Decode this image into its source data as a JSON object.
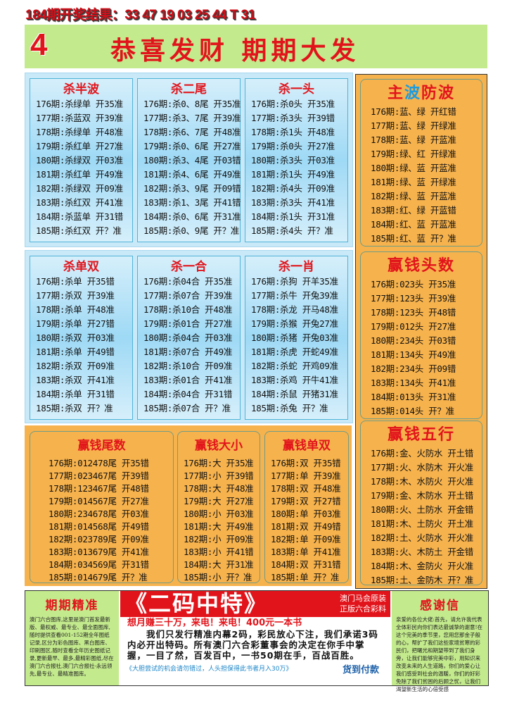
{
  "headline": "184期开奖结果：33 47 19 03 25 44 T 31",
  "banner": {
    "number": "4",
    "slogan": "恭喜发财  期期大发"
  },
  "blue_panels": [
    {
      "title": "杀半波",
      "rows": [
        "176期:杀绿单 开35准",
        "177期:杀蓝双 开39准",
        "178期:杀绿单 开48准",
        "179期:杀红单 开27准",
        "180期:杀绿双 开03准",
        "181期:杀红单 开49准",
        "182期:杀绿双 开09准",
        "183期:杀红双 开41准",
        "184期:杀蓝单 开31错",
        "185期:杀红双 开？准"
      ]
    },
    {
      "title": "杀二尾",
      "rows": [
        "176期:杀0、8尾 开35准",
        "177期:杀3、7尾 开39准",
        "178期:杀6、7尾 开48准",
        "179期:杀0、6尾 开27准",
        "180期:杀3、4尾 开03错",
        "181期:杀4、6尾 开49准",
        "182期:杀3、9尾 开09错",
        "183期:杀1、3尾 开41错",
        "184期:杀0、6尾 开31准",
        "185期:杀0、9尾 开？准"
      ]
    },
    {
      "title": "杀一头",
      "rows": [
        "176期:杀0头 开35准",
        "177期:杀3头 开39错",
        "178期:杀1头 开48准",
        "179期:杀0头 开27准",
        "180期:杀3头 开03准",
        "181期:杀1头 开49准",
        "182期:杀4头 开09准",
        "183期:杀3头 开41准",
        "184期:杀1头 开31准",
        "185期:杀4头 开？准"
      ]
    },
    {
      "title": "杀单双",
      "rows": [
        "176期:杀单 开35错",
        "177期:杀双 开39准",
        "178期:杀单 开48准",
        "179期:杀单 开27错",
        "180期:杀双 开03准",
        "181期:杀单 开49错",
        "182期:杀双 开09准",
        "183期:杀双 开41准",
        "184期:杀单 开31错",
        "185期:杀双 开？准"
      ]
    },
    {
      "title": "杀一合",
      "rows": [
        "176期:杀04合 开35准",
        "177期:杀07合 开39准",
        "178期:杀10合 开48准",
        "179期:杀01合 开27准",
        "180期:杀04合 开03准",
        "181期:杀07合 开49准",
        "182期:杀10合 开09准",
        "183期:杀01合 开41准",
        "184期:杀04合 开31错",
        "185期:杀07合 开？准"
      ]
    },
    {
      "title": "杀一肖",
      "rows": [
        "176期:杀狗 开羊35准",
        "177期:杀牛 开兔39准",
        "178期:杀龙 开马48准",
        "179期:杀猴 开兔27准",
        "180期:杀猪 开兔03准",
        "181期:杀虎 开蛇49准",
        "182期:杀蛇 开鸡09准",
        "183期:杀鸡 开牛41准",
        "184期:杀鼠 开猪31准",
        "185期:杀兔 开？准"
      ]
    }
  ],
  "orange_panels": [
    {
      "title": "赢钱尾数",
      "rows": [
        "176期:012478尾 开35错",
        "177期:023467尾 开39错",
        "178期:123467尾 开48错",
        "179期:014567尾 开27准",
        "180期:234678尾 开03准",
        "181期:014568尾 开49错",
        "182期:023789尾 开09准",
        "183期:013679尾 开41准",
        "184期:034569尾 开31错",
        "185期:014679尾 开？准"
      ]
    },
    {
      "title": "赢钱大小",
      "rows": [
        "176期:大 开35准",
        "177期:小 开39错",
        "178期:大 开48准",
        "179期:大 开27准",
        "180期:小 开03准",
        "181期:大 开49准",
        "182期:小 开09准",
        "183期:小 开41错",
        "184期:大 开31准",
        "185期:小 开？准"
      ]
    },
    {
      "title": "赢钱单双",
      "rows": [
        "176期:双 开35错",
        "177期:单 开39准",
        "178期:双 开48准",
        "179期:双 开27错",
        "180期:单 开03准",
        "181期:双 开49错",
        "182期:单 开09准",
        "183期:单 开41准",
        "184期:双 开31错",
        "185期:单 开？准"
      ]
    }
  ],
  "right_panels": [
    {
      "title_parts": [
        "主",
        "波",
        "防波"
      ],
      "rows": [
        "176期:蓝、绿 开红错",
        "177期:蓝、绿 开绿准",
        "178期:蓝、绿 开蓝准",
        "179期:绿、红 开绿准",
        "180期:绿、蓝 开蓝准",
        "181期:绿、蓝 开绿准",
        "182期:绿、蓝 开蓝准",
        "183期:红、绿 开蓝错",
        "184期:红、蓝 开蓝准",
        "185期:红、蓝 开？准"
      ]
    },
    {
      "title": "赢钱头数",
      "rows": [
        "176期:023头 开35准",
        "177期:123头 开39准",
        "178期:123头 开48错",
        "179期:012头 开27准",
        "180期:234头 开03错",
        "181期:134头 开49准",
        "182期:234头 开09错",
        "183期:134头 开41准",
        "184期:013头 开31准",
        "185期:014头 开？准"
      ]
    },
    {
      "title": "赢钱五行",
      "rows": [
        "176期:金、火防水 开土错",
        "177期:火、水防木 开火准",
        "178期:木、水防火 开火准",
        "179期:金、木防水 开土错",
        "180期:火、土防水 开金错",
        "181期:木、土防火 开土准",
        "182期:土、火防水 开火准",
        "183期:火、木防土 开金错",
        "184期:木、金防火 开火准",
        "185期:土、金防木 开？准"
      ]
    }
  ],
  "bottom": {
    "left": {
      "title": "期期精准",
      "text": "澳门六合图库,这里是澳门首发最新版、最权威、最专业、最全面图库,随时提供查看001-152期全年图纸记录,区分为彩色图库、黑白图库、印刷图区,随时查看全年历史图纸记录,更新最早、最多,最精彩图纸,尽在澳门六合报社,澳门六合报社-永远领先,最专业、最精准图库。"
    },
    "ad": {
      "headline": "《二码中特》",
      "side_line1": "澳门马会原装",
      "side_line2": "正版六合彩料",
      "red_line": "想月赚三十万，来电！来电！400元一本书",
      "body": "　　我们只发行精准内幕2码，彩民放心下注，我们承诺3码内必开出特码。所有澳门六合彩董事会的决定在你手中掌握，一目了然，百发百中，一书50期在手，百战百胜。",
      "note": "《大胆尝试的机会请勿错过，人头担保得此书者月入30万》",
      "cod": "货到付款"
    },
    "right": {
      "title": "感谢信",
      "text": "亲爱的各位大佬:首先，请允许我代表全体彩民向你们表达最诚挚的谢意!在这个完美的季节里，您用您那金子般的心，帮扩了我们这些家境贫寒的彩民们，把曙光和期望带到了我们身旁，让我们能够完美中彩，用知识来改变未来的人生道路，你们的爱心让我们感受到社会的温暖，你们的好彩免除了我们贫困的后顾之忧，让我们渴望新生活的心倍受感"
    }
  },
  "colors": {
    "title_red": "#e2141b",
    "banner_green": "#c3ea8d",
    "panel_blue": "#9ed9f5",
    "panel_orange": "#f6b24d",
    "accent_blue": "#1b86c8"
  }
}
